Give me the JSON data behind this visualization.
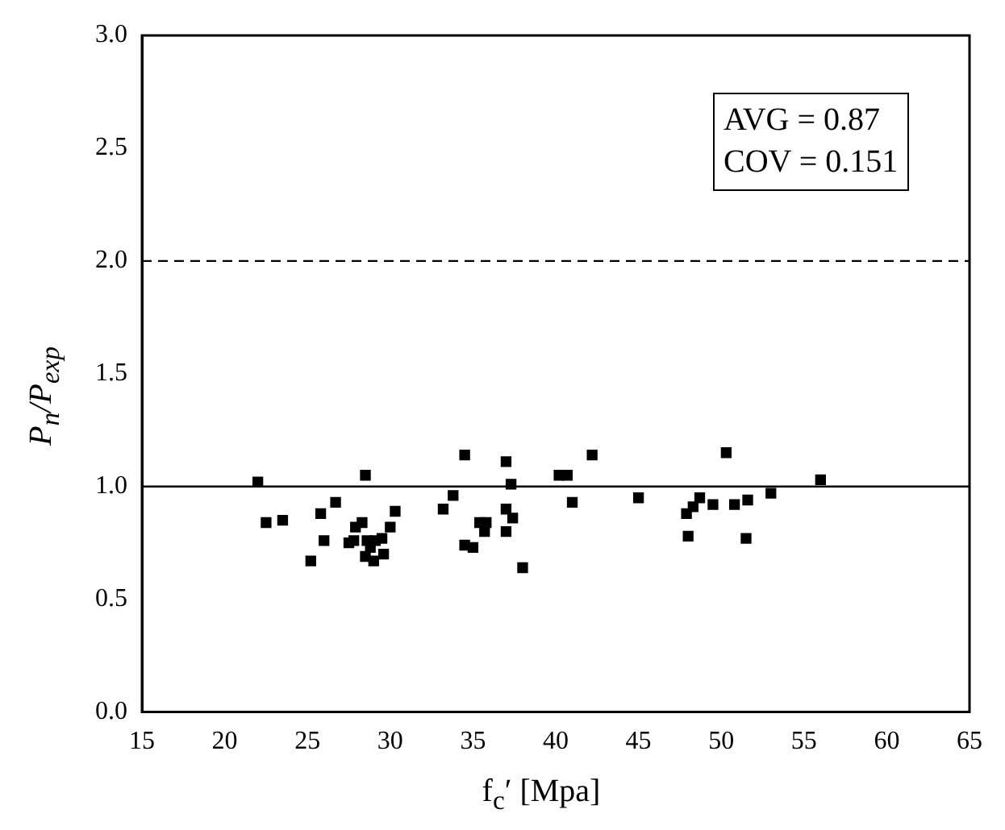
{
  "chart_data": {
    "type": "scatter",
    "xlabel": "f$_{c}$′ [Mpa]",
    "ylabel": "P$_{n}$/P$_{exp}$",
    "annotations": [
      "AVG = 0.87",
      "COV = 0.151"
    ],
    "series": [
      {
        "color": "#000000",
        "x": [
          22,
          22.5,
          23.5,
          25.2,
          25.8,
          26,
          26.7,
          27.5,
          27.8,
          27.9,
          28.3,
          28.5,
          28.5,
          28.6,
          28.8,
          29,
          29.1,
          29.5,
          29.6,
          30,
          30.3,
          33.2,
          33.8,
          34.5,
          34.5,
          35,
          35.4,
          35.7,
          35.8,
          37,
          37,
          37,
          37.3,
          37.4,
          38,
          40.2,
          40.7,
          41,
          42.2,
          45,
          47.9,
          48,
          48.3,
          48.7,
          49.5,
          50.3,
          50.8,
          51.5,
          51.6,
          53,
          56
        ],
        "values": [
          1.02,
          0.84,
          0.85,
          0.67,
          0.88,
          0.76,
          0.93,
          0.75,
          0.76,
          0.82,
          0.84,
          1.05,
          0.69,
          0.76,
          0.73,
          0.67,
          0.76,
          0.77,
          0.7,
          0.82,
          0.89,
          0.9,
          0.96,
          1.14,
          0.74,
          0.73,
          0.84,
          0.8,
          0.84,
          1.11,
          0.9,
          0.8,
          1.01,
          0.86,
          0.64,
          1.05,
          1.05,
          0.93,
          1.14,
          0.95,
          0.88,
          0.78,
          0.91,
          0.95,
          0.92,
          1.15,
          0.92,
          0.77,
          0.94,
          0.97,
          1.03
        ]
      }
    ],
    "xlim": [
      15,
      65
    ],
    "xticks": [
      15,
      20,
      25,
      30,
      35,
      40,
      45,
      50,
      55,
      60,
      65
    ],
    "ylim": [
      0,
      3
    ],
    "yticks": [
      {
        "value": 0,
        "label": "0.0"
      },
      {
        "value": 0.5,
        "label": "0.5"
      },
      {
        "value": 1,
        "label": "1.0"
      },
      {
        "value": 1.5,
        "label": "1.5"
      },
      {
        "value": 2,
        "label": "2.0"
      },
      {
        "value": 2.5,
        "label": "2.5"
      },
      {
        "value": 3,
        "label": "3.0"
      }
    ],
    "ref_lines": [
      {
        "axis": "y",
        "value": 1,
        "color": "#000000",
        "line_style": "solid"
      },
      {
        "axis": "y",
        "value": 2,
        "color": "#000000",
        "line_style": "dashed"
      }
    ],
    "marker": "square",
    "grid": false,
    "legend": false
  }
}
